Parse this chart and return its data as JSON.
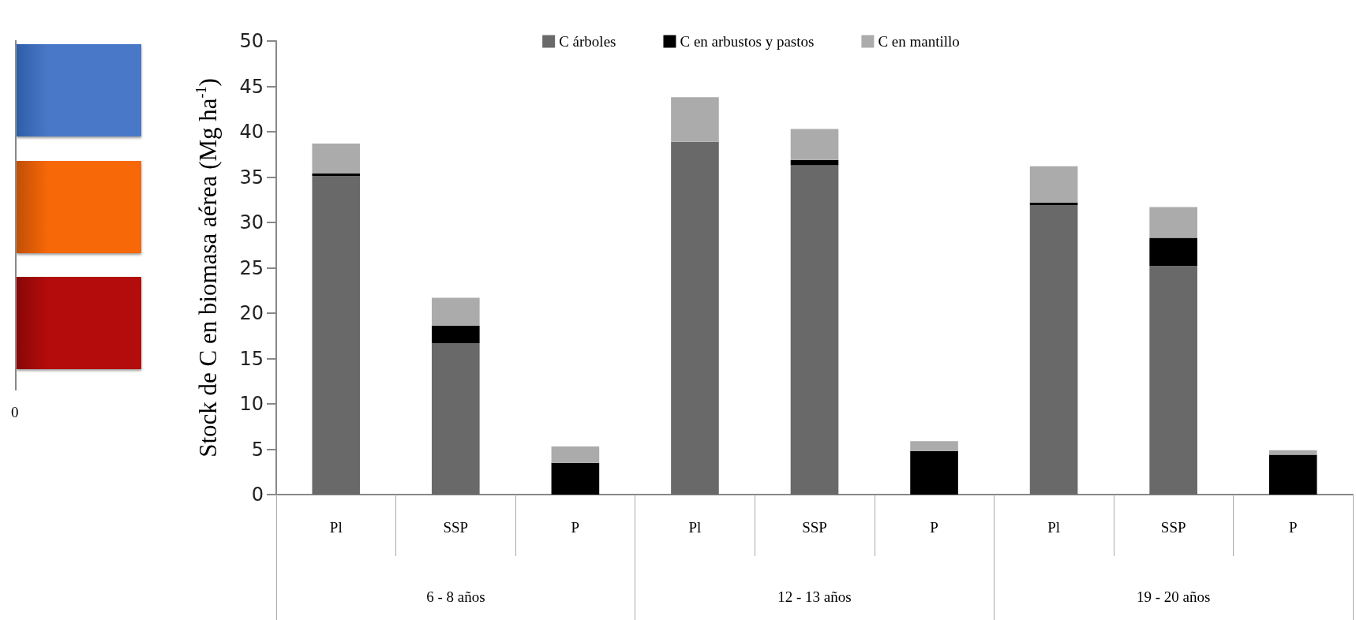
{
  "chart_data": [
    {
      "type": "other",
      "annotations": [
        "0"
      ]
    },
    {
      "type": "bar",
      "stacked": true,
      "ylabel": "Stock de C en biomasa aérea (Mg ha$^{-1}$)",
      "categories": [
        "Pl",
        "SSP",
        "P",
        "Pl",
        "SSP",
        "P",
        "Pl",
        "SSP",
        "P"
      ],
      "series": [
        {
          "name": "C árboles",
          "color": "#696969",
          "values": [
            35.1,
            16.7,
            0,
            38.9,
            36.3,
            0,
            31.9,
            25.2,
            0
          ]
        },
        {
          "name": "C en arbustos y pastos",
          "color": "#000000",
          "values": [
            0.3,
            1.9,
            3.5,
            0,
            0.6,
            4.8,
            0.3,
            3.1,
            4.4
          ]
        },
        {
          "name": "C en mantillo",
          "color": "#ababab",
          "values": [
            3.3,
            3.1,
            1.8,
            4.9,
            3.4,
            1.1,
            4.0,
            3.4,
            0.5
          ]
        }
      ],
      "ylim": [
        0,
        50
      ],
      "yticks": [
        0,
        5,
        10,
        15,
        20,
        25,
        30,
        35,
        40,
        45,
        50
      ],
      "legend": "top",
      "grid": false,
      "annotations": [
        "6 - 8 años",
        "12 - 13 años",
        "19 - 20 años"
      ]
    }
  ]
}
